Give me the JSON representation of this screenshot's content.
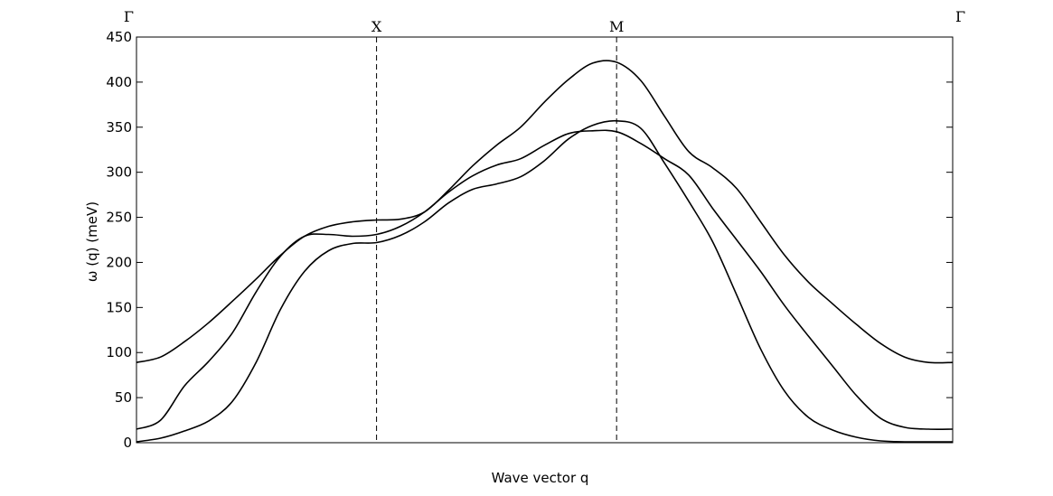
{
  "chart_data": {
    "type": "line",
    "xlabel": "Wave vector q",
    "ylabel": "ω (q) (meV)",
    "ylim": [
      0,
      450
    ],
    "yticks": [
      "0",
      "50",
      "100",
      "150",
      "200",
      "250",
      "300",
      "350",
      "400",
      "450"
    ],
    "xlim": [
      0,
      3.4
    ],
    "symmetry_points": [
      {
        "label": "Γ",
        "x": 0,
        "dashed": false
      },
      {
        "label": "X",
        "x": 1,
        "dashed": true
      },
      {
        "label": "M",
        "x": 2,
        "dashed": true
      },
      {
        "label": "Γ",
        "x": 3.4,
        "dashed": false
      }
    ],
    "grid": false,
    "line_color": "#000000",
    "series": [
      {
        "x": [
          0,
          0.1,
          0.2,
          0.3,
          0.4,
          0.5,
          0.6,
          0.7,
          0.8,
          0.9,
          1.0,
          1.1,
          1.2,
          1.3,
          1.4,
          1.5,
          1.6,
          1.7,
          1.8,
          1.9,
          2.0,
          2.1,
          2.2,
          2.3,
          2.4,
          2.5,
          2.6,
          2.7,
          2.8,
          2.9,
          3.0,
          3.1,
          3.2,
          3.3,
          3.4
        ],
        "y": [
          89,
          95,
          112,
          133,
          157,
          182,
          208,
          229,
          240,
          245,
          247,
          248,
          256,
          280,
          307,
          330,
          350,
          378,
          403,
          421,
          422,
          402,
          362,
          323,
          305,
          282,
          245,
          208,
          178,
          154,
          131,
          110,
          95,
          89,
          89
        ]
      },
      {
        "x": [
          0,
          0.1,
          0.2,
          0.3,
          0.4,
          0.5,
          0.6,
          0.7,
          0.8,
          0.9,
          1.0,
          1.1,
          1.2,
          1.3,
          1.4,
          1.5,
          1.6,
          1.7,
          1.8,
          1.9,
          2.0,
          2.1,
          2.2,
          2.3,
          2.4,
          2.5,
          2.6,
          2.7,
          2.8,
          2.9,
          3.0,
          3.1,
          3.2,
          3.3,
          3.4
        ],
        "y": [
          15,
          25,
          63,
          90,
          122,
          168,
          207,
          229,
          231,
          229,
          231,
          240,
          256,
          278,
          296,
          308,
          315,
          330,
          343,
          346,
          345,
          332,
          315,
          297,
          260,
          225,
          190,
          152,
          118,
          85,
          52,
          27,
          17,
          15,
          15
        ]
      },
      {
        "x": [
          0,
          0.1,
          0.2,
          0.3,
          0.4,
          0.5,
          0.6,
          0.7,
          0.8,
          0.9,
          1.0,
          1.1,
          1.2,
          1.3,
          1.4,
          1.5,
          1.6,
          1.7,
          1.8,
          1.9,
          2.0,
          2.1,
          2.2,
          2.3,
          2.4,
          2.5,
          2.6,
          2.7,
          2.8,
          2.9,
          3.0,
          3.1,
          3.2,
          3.3,
          3.4
        ],
        "y": [
          1,
          5,
          13,
          24,
          46,
          90,
          148,
          190,
          213,
          221,
          222,
          230,
          245,
          266,
          281,
          287,
          295,
          313,
          337,
          352,
          357,
          349,
          310,
          268,
          223,
          164,
          104,
          57,
          28,
          14,
          6,
          2,
          1,
          1,
          1
        ]
      }
    ]
  }
}
